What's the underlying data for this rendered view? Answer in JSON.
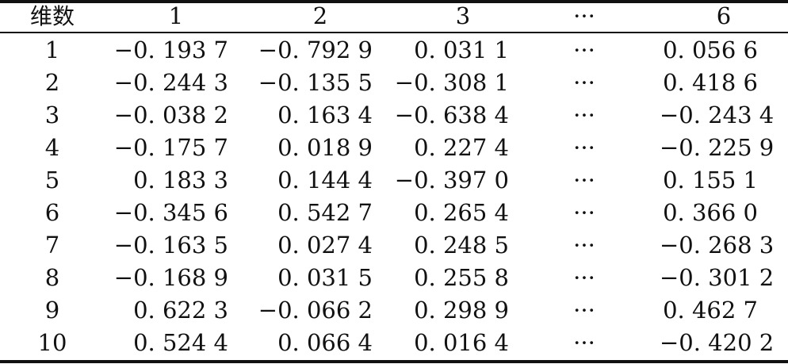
{
  "table": {
    "headers": [
      "维数",
      "1",
      "2",
      "3",
      "···",
      "6"
    ],
    "rows": [
      [
        "1",
        "−0. 193 7",
        "−0. 792 9",
        "0. 031 1",
        "···",
        "0. 056 6"
      ],
      [
        "2",
        "−0. 244 3",
        "−0. 135 5",
        "−0. 308 1",
        "···",
        "0. 418 6"
      ],
      [
        "3",
        "−0. 038 2",
        "0. 163 4",
        "−0. 638 4",
        "···",
        "−0. 243 4"
      ],
      [
        "4",
        "−0. 175 7",
        "0. 018 9",
        "0. 227 4",
        "···",
        "−0. 225 9"
      ],
      [
        "5",
        "0. 183 3",
        "0. 144 4",
        "−0. 397 0",
        "···",
        "0. 155 1"
      ],
      [
        "6",
        "−0. 345 6",
        "0. 542 7",
        "0. 265 4",
        "···",
        "0. 366 0"
      ],
      [
        "7",
        "−0. 163 5",
        "0. 027 4",
        "0. 248 5",
        "···",
        "−0. 268 3"
      ],
      [
        "8",
        "−0. 168 9",
        "0. 031 5",
        "0. 255 8",
        "···",
        "−0. 301 2"
      ],
      [
        "9",
        "0. 622 3",
        "−0. 066 2",
        "0. 298 9",
        "···",
        "0. 462 7"
      ],
      [
        "10",
        "0. 524 4",
        "0. 066 4",
        "0. 016 4",
        "···",
        "−0. 420 2"
      ]
    ]
  }
}
